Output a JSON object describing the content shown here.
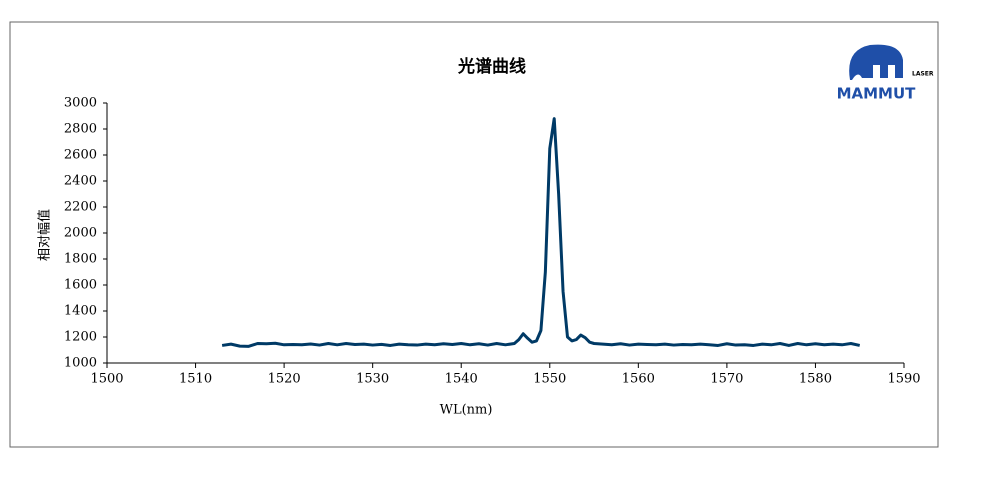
{
  "chart_data": {
    "type": "line",
    "title": "光谱曲线",
    "xlabel": "WL(nm)",
    "ylabel": "相对幅值",
    "logo": {
      "name": "MAMMUT",
      "tag": "LASER"
    },
    "x": [
      1513,
      1514,
      1515,
      1516,
      1517,
      1518,
      1519,
      1520,
      1521,
      1522,
      1523,
      1524,
      1525,
      1526,
      1527,
      1528,
      1529,
      1530,
      1531,
      1532,
      1533,
      1534,
      1535,
      1536,
      1537,
      1538,
      1539,
      1540,
      1541,
      1542,
      1543,
      1544,
      1545,
      1546,
      1546.5,
      1547,
      1547.5,
      1548,
      1548.5,
      1549,
      1549.5,
      1550,
      1550.5,
      1551,
      1551.5,
      1552,
      1552.5,
      1553,
      1553.5,
      1554,
      1554.5,
      1555,
      1556,
      1557,
      1558,
      1559,
      1560,
      1561,
      1562,
      1563,
      1564,
      1565,
      1566,
      1567,
      1568,
      1569,
      1570,
      1571,
      1572,
      1573,
      1574,
      1575,
      1576,
      1577,
      1578,
      1579,
      1580,
      1581,
      1582,
      1583,
      1584,
      1585
    ],
    "series": [
      {
        "color": "#003a66",
        "values": [
          1135,
          1145,
          1130,
          1128,
          1150,
          1148,
          1152,
          1140,
          1142,
          1140,
          1146,
          1138,
          1150,
          1140,
          1150,
          1142,
          1145,
          1138,
          1143,
          1135,
          1145,
          1140,
          1138,
          1145,
          1140,
          1148,
          1142,
          1150,
          1140,
          1148,
          1138,
          1150,
          1140,
          1150,
          1180,
          1225,
          1190,
          1160,
          1170,
          1250,
          1700,
          2650,
          2880,
          2300,
          1550,
          1200,
          1170,
          1180,
          1215,
          1195,
          1160,
          1150,
          1145,
          1140,
          1148,
          1138,
          1145,
          1142,
          1140,
          1145,
          1138,
          1142,
          1140,
          1145,
          1140,
          1135,
          1148,
          1138,
          1140,
          1135,
          1145,
          1140,
          1150,
          1135,
          1150,
          1140,
          1148,
          1140,
          1145,
          1140,
          1150,
          1135
        ]
      }
    ],
    "xlim": [
      1500,
      1590
    ],
    "xticks": [
      1500,
      1510,
      1520,
      1530,
      1540,
      1550,
      1560,
      1570,
      1580,
      1590
    ],
    "ylim": [
      1000,
      3000
    ],
    "yticks": [
      1000,
      1200,
      1400,
      1600,
      1800,
      2000,
      2200,
      2400,
      2600,
      2800,
      3000
    ],
    "grid": false
  }
}
